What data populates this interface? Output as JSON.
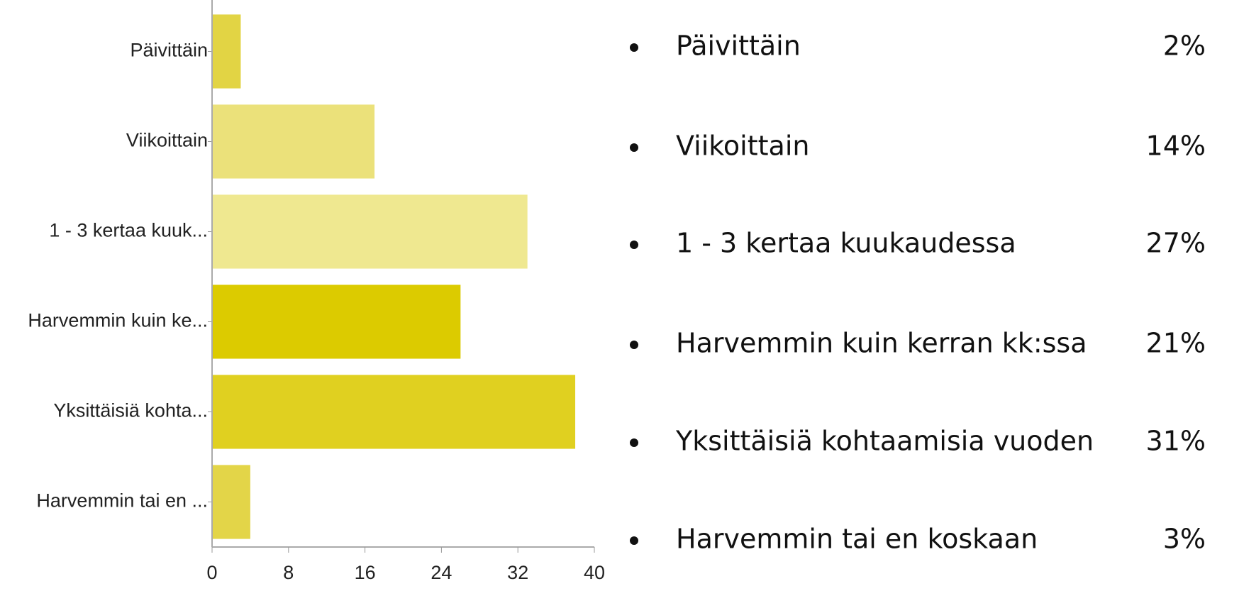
{
  "chart_data": {
    "type": "bar",
    "orientation": "horizontal",
    "categories": [
      "Päivittäin",
      "Viikoittain",
      "1 - 3 kertaa kuuk...",
      "Harvemmin kuin ke...",
      "Yksittäisiä kohta...",
      "Harvemmin tai en ..."
    ],
    "values": [
      3,
      17,
      33,
      26,
      38,
      4
    ],
    "colors": [
      "#e2d444",
      "#ebe17a",
      "#efe890",
      "#dccb00",
      "#e0d020",
      "#e3d548"
    ],
    "xlim": [
      0,
      40
    ],
    "xticks": [
      0,
      8,
      16,
      24,
      32,
      40
    ]
  },
  "list": {
    "items": [
      {
        "label": "Päivittäin",
        "percent": "2%"
      },
      {
        "label": "Viikoittain",
        "percent": "14%"
      },
      {
        "label": "1 - 3 kertaa kuukaudessa",
        "percent": "27%"
      },
      {
        "label": "Harvemmin kuin kerran kk:ssa",
        "percent": "21%"
      },
      {
        "label": "Yksittäisiä kohtaamisia vuoden",
        "percent": "31%"
      },
      {
        "label": "Harvemmin tai en koskaan",
        "percent": "3%"
      }
    ]
  }
}
